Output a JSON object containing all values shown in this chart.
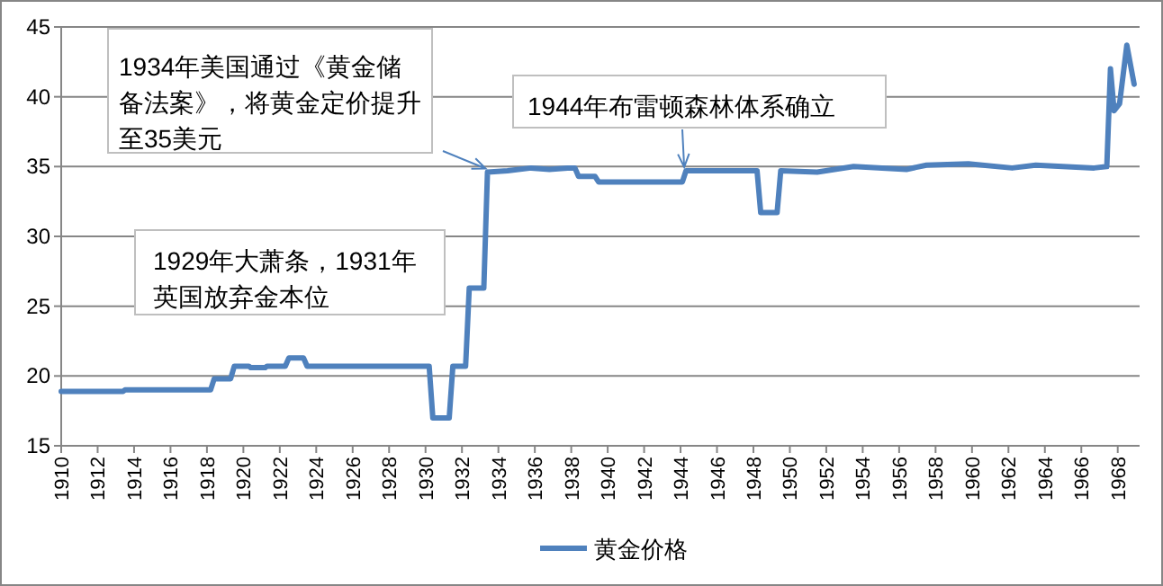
{
  "chart_data": {
    "type": "line",
    "x": [
      1910,
      1913.4,
      1913.5,
      1918.2,
      1918.4,
      1919.3,
      1919.5,
      1920.3,
      1920.4,
      1921.2,
      1921.3,
      1922.3,
      1922.5,
      1923.3,
      1923.5,
      1930.2,
      1930.4,
      1931.3,
      1931.5,
      1932.2,
      1932.4,
      1933.2,
      1933.4,
      1934.5,
      1935.8,
      1936.8,
      1937.8,
      1938.2,
      1938.4,
      1939.3,
      1939.5,
      1944.1,
      1944.3,
      1948.2,
      1948.4,
      1949.3,
      1949.5,
      1951.5,
      1953.5,
      1956.4,
      1957.5,
      1959.8,
      1962.2,
      1963.5,
      1966.7,
      1967.4,
      1967.6,
      1967.8,
      1968.1,
      1968.5,
      1968.9
    ],
    "series": [
      {
        "name": "黄金价格",
        "color": "#4f81bd",
        "values": [
          18.9,
          18.9,
          19.0,
          19.0,
          19.8,
          19.8,
          20.7,
          20.7,
          20.6,
          20.6,
          20.7,
          20.7,
          21.3,
          21.3,
          20.7,
          20.7,
          17.0,
          17.0,
          20.7,
          20.7,
          26.3,
          26.3,
          34.6,
          34.7,
          34.9,
          34.8,
          34.9,
          34.9,
          34.3,
          34.3,
          33.9,
          33.9,
          34.7,
          34.7,
          31.7,
          31.7,
          34.7,
          34.6,
          35.0,
          34.8,
          35.1,
          35.2,
          34.9,
          35.1,
          34.9,
          35.0,
          42.0,
          39.0,
          39.5,
          43.7,
          40.9
        ]
      }
    ],
    "xlim": [
      1910,
      1969.2
    ],
    "xticks": [
      1910,
      1912,
      1914,
      1916,
      1918,
      1920,
      1922,
      1924,
      1926,
      1928,
      1930,
      1932,
      1934,
      1936,
      1938,
      1940,
      1942,
      1944,
      1946,
      1948,
      1950,
      1952,
      1954,
      1956,
      1958,
      1960,
      1962,
      1964,
      1966,
      1968
    ],
    "ylim": [
      15,
      45
    ],
    "yticks": [
      15,
      20,
      25,
      30,
      35,
      40,
      45
    ],
    "grid": "y",
    "legend": "bottom",
    "annotations": [
      {
        "text": "1934年美国通过《黄金储备法案》，将黄金定价提升至35美元",
        "x": 1933.3,
        "y": 34.6
      },
      {
        "text": "1944年布雷顿森林体系确立",
        "x": 1944.2,
        "y": 34.7
      },
      "1929年大萧条，1931年英国放弃金本位"
    ]
  }
}
